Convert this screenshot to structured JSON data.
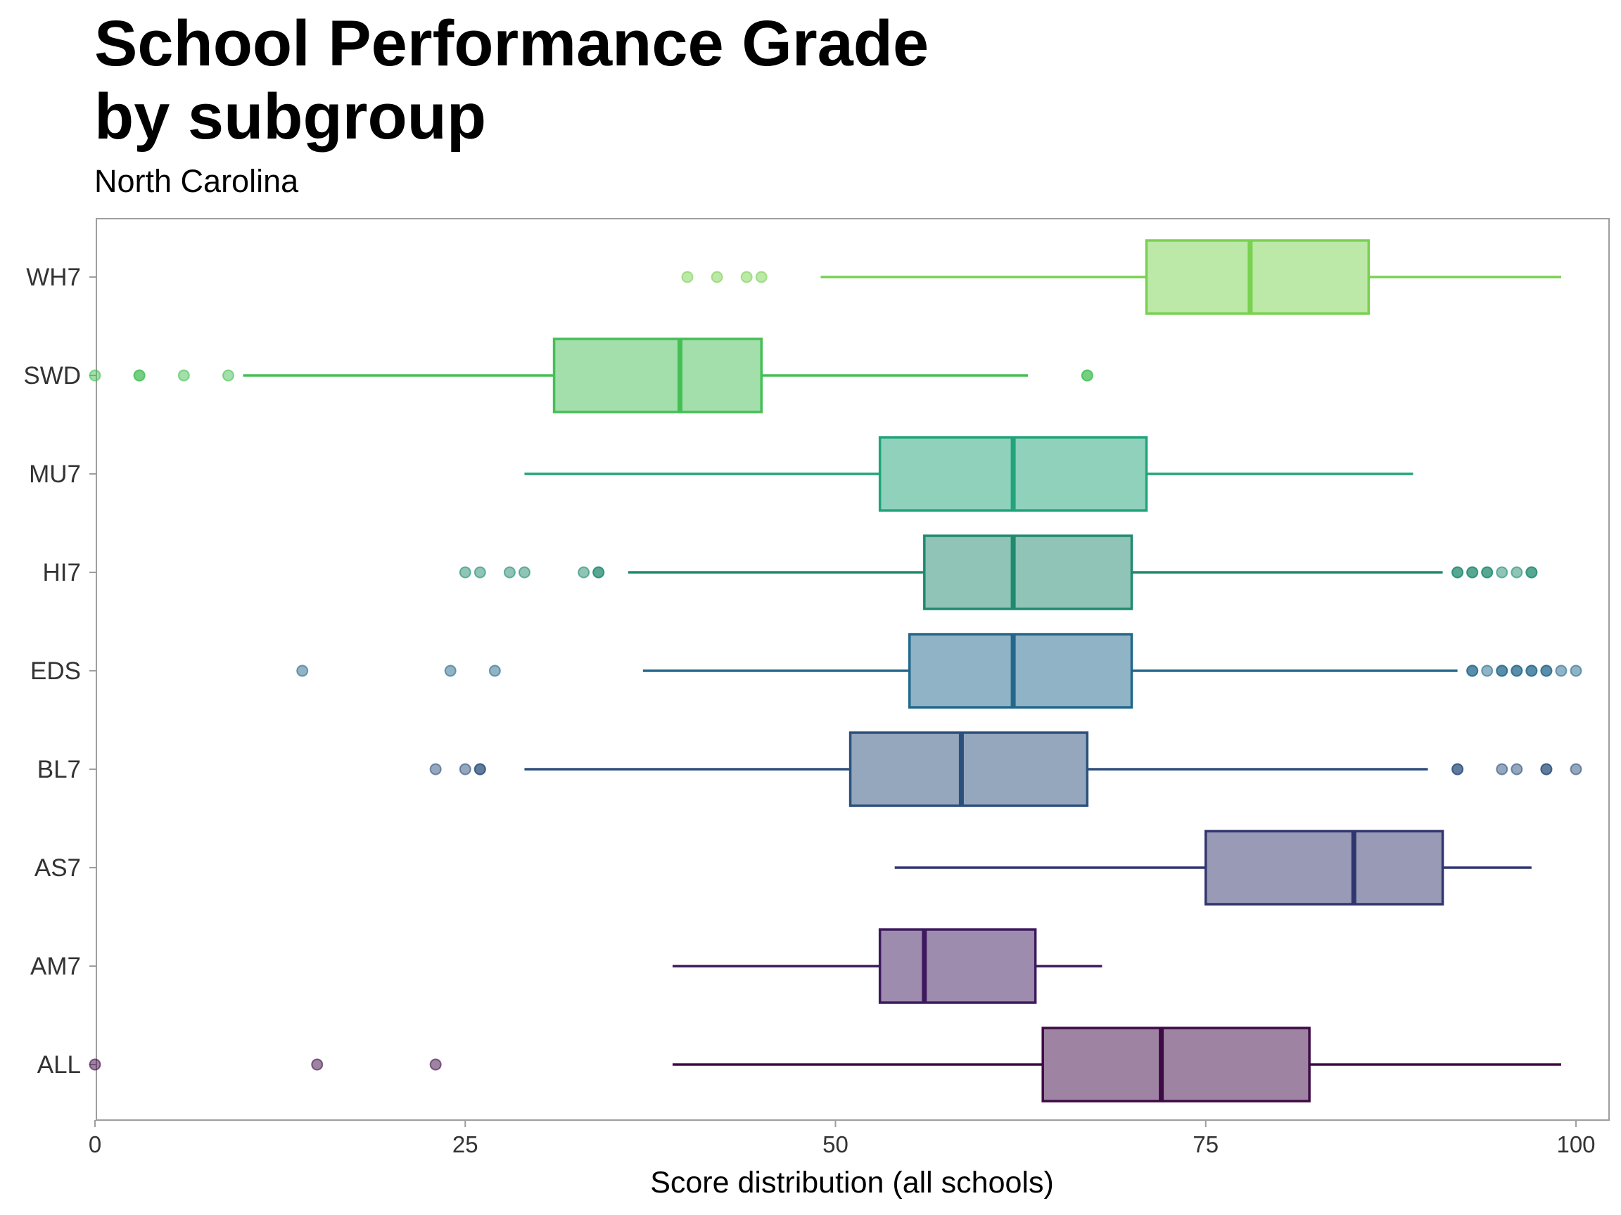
{
  "chart_data": {
    "type": "boxplot",
    "title": "School Performance Grade\nby subgroup",
    "subtitle": "North Carolina",
    "xlabel": "Score distribution (all schools)",
    "ylabel": "",
    "xlim": [
      0,
      100
    ],
    "x_ticks": [
      "0",
      "25",
      "50",
      "75",
      "100"
    ],
    "x_tick_values": [
      0,
      25,
      50,
      75,
      100
    ],
    "grid": false,
    "legend": "none",
    "categories": [
      "WH7",
      "SWD",
      "MU7",
      "HI7",
      "EDS",
      "BL7",
      "AS7",
      "AM7",
      "ALL"
    ],
    "series": [
      {
        "label": "WH7",
        "color": "#7ad151",
        "whisker_low": 49,
        "q1": 71,
        "median": 78,
        "q3": 86,
        "whisker_high": 99,
        "outliers": [
          40,
          42,
          44,
          45
        ]
      },
      {
        "label": "SWD",
        "color": "#45bf55",
        "whisker_low": 10,
        "q1": 31,
        "median": 39.5,
        "q3": 45,
        "whisker_high": 63,
        "outliers": [
          0,
          3,
          3,
          6,
          9,
          67,
          67
        ]
      },
      {
        "label": "MU7",
        "color": "#22a47a",
        "whisker_low": 29,
        "q1": 53,
        "median": 62,
        "q3": 71,
        "whisker_high": 89,
        "outliers": []
      },
      {
        "label": "HI7",
        "color": "#1f8a70",
        "whisker_low": 36,
        "q1": 56,
        "median": 62,
        "q3": 70,
        "whisker_high": 91,
        "outliers": [
          25,
          26,
          28,
          29,
          33,
          34,
          34,
          92,
          92,
          93,
          93,
          94,
          94,
          95,
          96,
          97,
          97
        ]
      },
      {
        "label": "EDS",
        "color": "#21688b",
        "whisker_low": 37,
        "q1": 55,
        "median": 62,
        "q3": 70,
        "whisker_high": 92,
        "outliers": [
          14,
          24,
          27,
          93,
          93,
          94,
          95,
          95,
          96,
          96,
          97,
          97,
          98,
          98,
          99,
          100
        ]
      },
      {
        "label": "BL7",
        "color": "#2c4f7c",
        "whisker_low": 29,
        "q1": 51,
        "median": 58.5,
        "q3": 67,
        "whisker_high": 90,
        "outliers": [
          23,
          25,
          26,
          26,
          92,
          92,
          95,
          96,
          98,
          98,
          100
        ]
      },
      {
        "label": "AS7",
        "color": "#31356e",
        "whisker_low": 54,
        "q1": 75,
        "median": 85,
        "q3": 91,
        "whisker_high": 97,
        "outliers": []
      },
      {
        "label": "AM7",
        "color": "#3d1a5e",
        "whisker_low": 39,
        "q1": 53,
        "median": 56,
        "q3": 63.5,
        "whisker_high": 68,
        "outliers": []
      },
      {
        "label": "ALL",
        "color": "#3e0a45",
        "whisker_low": 39,
        "q1": 64,
        "median": 72,
        "q3": 82,
        "whisker_high": 99,
        "outliers": [
          0,
          15,
          23
        ]
      }
    ]
  }
}
